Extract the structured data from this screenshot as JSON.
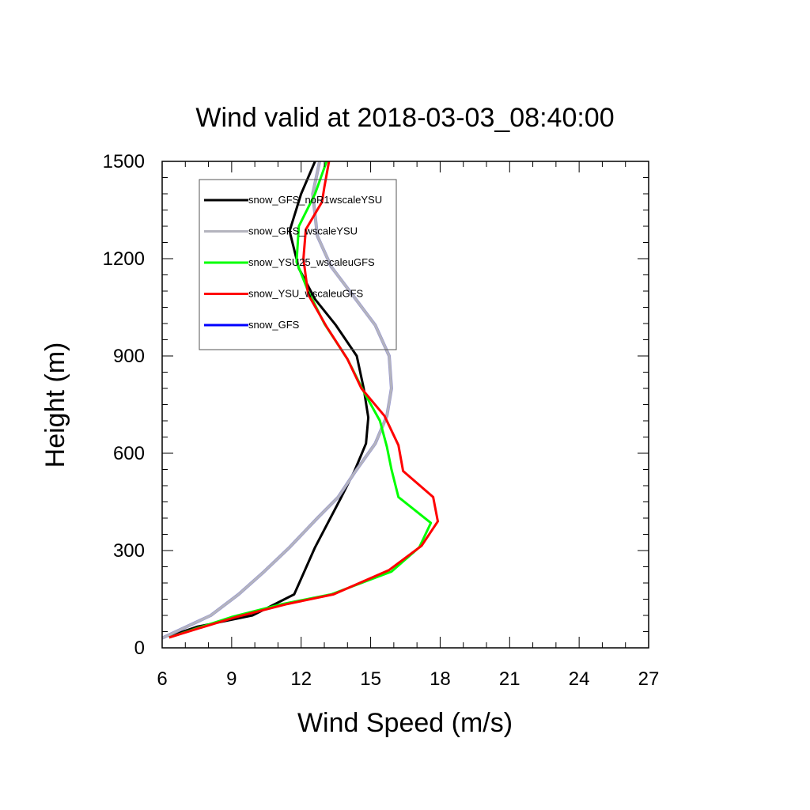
{
  "chart_data": {
    "type": "line",
    "title": "Wind valid at 2018-03-03_08:40:00",
    "xlabel": "Wind Speed (m/s)",
    "ylabel": "Height (m)",
    "xlim": [
      6,
      27
    ],
    "ylim": [
      0,
      1500
    ],
    "xticks": [
      6,
      9,
      12,
      15,
      18,
      21,
      24,
      27
    ],
    "yticks": [
      0,
      300,
      600,
      900,
      1200,
      1500
    ],
    "grid": false,
    "legend_position": "top-left",
    "series": [
      {
        "name": "snow_GFS_noR1wscaleYSU",
        "color": "#000000",
        "points": [
          [
            6.3,
            35
          ],
          [
            7.5,
            65
          ],
          [
            9.9,
            100
          ],
          [
            11.7,
            165
          ],
          [
            12.6,
            310
          ],
          [
            13.7,
            460
          ],
          [
            14.3,
            545
          ],
          [
            14.8,
            630
          ],
          [
            14.9,
            710
          ],
          [
            14.7,
            800
          ],
          [
            14.4,
            900
          ],
          [
            13.5,
            995
          ],
          [
            12.6,
            1075
          ],
          [
            11.9,
            1170
          ],
          [
            11.5,
            1285
          ],
          [
            12.0,
            1400
          ],
          [
            12.6,
            1500
          ]
        ]
      },
      {
        "name": "snow_GFS_wscaleYSU",
        "color": "#b4b4be",
        "points": [
          [
            6.0,
            30
          ],
          [
            8.1,
            100
          ],
          [
            9.3,
            165
          ],
          [
            10.4,
            235
          ],
          [
            11.5,
            310
          ],
          [
            12.7,
            400
          ],
          [
            13.6,
            465
          ],
          [
            14.3,
            540
          ],
          [
            15.2,
            630
          ],
          [
            15.7,
            715
          ],
          [
            15.9,
            800
          ],
          [
            15.8,
            900
          ],
          [
            15.2,
            995
          ],
          [
            14.2,
            1090
          ],
          [
            13.3,
            1175
          ],
          [
            12.7,
            1270
          ],
          [
            12.5,
            1400
          ],
          [
            12.8,
            1500
          ]
        ]
      },
      {
        "name": "snow_YSU25_wscaleuGFS",
        "color": "#00ff00",
        "points": [
          [
            6.3,
            32
          ],
          [
            7.7,
            65
          ],
          [
            9.0,
            95
          ],
          [
            11.2,
            135
          ],
          [
            13.3,
            165
          ],
          [
            15.9,
            235
          ],
          [
            17.1,
            310
          ],
          [
            17.6,
            385
          ],
          [
            16.2,
            465
          ],
          [
            15.9,
            550
          ],
          [
            15.7,
            620
          ],
          [
            15.4,
            700
          ],
          [
            14.7,
            790
          ],
          [
            14.0,
            890
          ],
          [
            13.0,
            1000
          ],
          [
            12.3,
            1100
          ],
          [
            11.8,
            1190
          ],
          [
            11.9,
            1300
          ],
          [
            12.6,
            1400
          ],
          [
            13.1,
            1500
          ]
        ]
      },
      {
        "name": "snow_YSU_wscaleuGFS",
        "color": "#ff0000",
        "points": [
          [
            6.3,
            32
          ],
          [
            7.8,
            65
          ],
          [
            9.2,
            95
          ],
          [
            11.4,
            135
          ],
          [
            13.4,
            165
          ],
          [
            15.8,
            240
          ],
          [
            17.2,
            315
          ],
          [
            17.9,
            390
          ],
          [
            17.7,
            465
          ],
          [
            16.4,
            545
          ],
          [
            16.2,
            625
          ],
          [
            15.6,
            715
          ],
          [
            14.6,
            800
          ],
          [
            14.0,
            890
          ],
          [
            13.1,
            990
          ],
          [
            12.3,
            1090
          ],
          [
            12.1,
            1200
          ],
          [
            12.2,
            1290
          ],
          [
            12.9,
            1375
          ],
          [
            13.0,
            1420
          ],
          [
            13.2,
            1500
          ]
        ]
      },
      {
        "name": "snow_GFS",
        "color": "#0000ff",
        "points": []
      }
    ]
  }
}
